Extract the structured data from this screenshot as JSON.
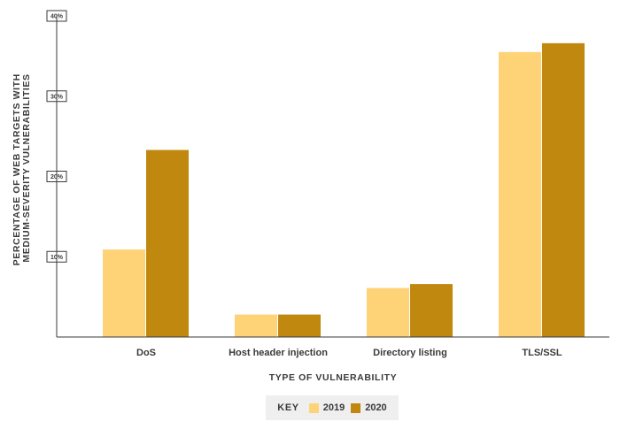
{
  "chart_data": {
    "type": "bar",
    "title": "",
    "xlabel": "TYPE OF VULNERABILITY",
    "ylabel_lines": [
      "PERCENTAGE OF WEB TARGETS WITH",
      "MEDIUM-SEVERITY VULNERABILITIES"
    ],
    "ylim": [
      0,
      40
    ],
    "yticks": [
      {
        "value": 10,
        "label": "10%"
      },
      {
        "value": 20,
        "label": "20%"
      },
      {
        "value": 30,
        "label": "30%"
      },
      {
        "value": 40,
        "label": "40%"
      }
    ],
    "categories": [
      "DoS",
      "Host header injection",
      "Directory listing",
      "TLS/SSL"
    ],
    "series": [
      {
        "name": "2019",
        "color": "#fed277",
        "values": [
          10.9,
          2.8,
          6.1,
          35.5
        ]
      },
      {
        "name": "2020",
        "color": "#c0880f",
        "values": [
          23.3,
          2.8,
          6.6,
          36.6
        ]
      }
    ],
    "grid": false,
    "legend": {
      "position": "bottom-center",
      "key_label": "KEY"
    }
  }
}
